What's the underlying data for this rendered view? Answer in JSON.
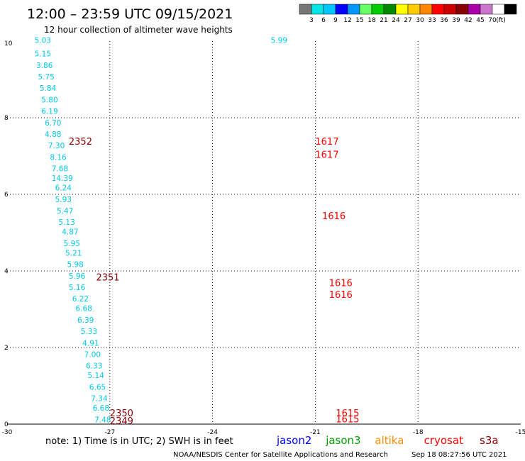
{
  "title": "12:00 – 23:59 UTC 09/15/2021",
  "subtitle": "12 hour collection of altimeter wave heights",
  "color_scale": {
    "colors": [
      "#777777",
      "#00e5e5",
      "#00c8ff",
      "#0000ff",
      "#0096ff",
      "#66ff66",
      "#00cc00",
      "#008800",
      "#ffff00",
      "#ffcc00",
      "#ff8800",
      "#ff0000",
      "#cc0000",
      "#880000",
      "#aa00aa",
      "#cc77cc",
      "#ffffff",
      "#000000"
    ],
    "labels": [
      "3",
      "6",
      "9",
      "12",
      "15",
      "18",
      "21",
      "24",
      "27",
      "30",
      "33",
      "36",
      "39",
      "42",
      "45",
      "70"
    ],
    "unit": "(ft)"
  },
  "note": "note: 1) Time is in UTC; 2) SWH is in feet",
  "legend": [
    {
      "label": "jason2",
      "color": "#0000ff"
    },
    {
      "label": "jason3",
      "color": "#00a000"
    },
    {
      "label": "altika",
      "color": "#ff8c00"
    },
    {
      "label": "cryosat",
      "color": "#ff0000"
    },
    {
      "label": "s3a",
      "color": "#880000"
    }
  ],
  "footer": "NOAA/NESDIS Center for Satellite Applications and Research",
  "timestamp": "Sep 18 08:27:56 UTC 2021",
  "chart_data": {
    "type": "scatter",
    "xlim": [
      -30,
      -15
    ],
    "ylim": [
      0,
      10
    ],
    "x_ticks": [
      "-30",
      "-27",
      "-24",
      "-21",
      "-18",
      "-15"
    ],
    "y_ticks": [
      "0",
      "2",
      "4",
      "6",
      "8",
      "10"
    ],
    "grid": true,
    "series": [
      {
        "name": "track-left",
        "color": "#00c8e6",
        "points": [
          [
            -29.2,
            9.95,
            "5.03"
          ],
          [
            -29.2,
            9.6,
            "5.15"
          ],
          [
            -29.15,
            9.3,
            "3.86"
          ],
          [
            -29.1,
            9.0,
            "5.75"
          ],
          [
            -29.05,
            8.7,
            "5.84"
          ],
          [
            -29.0,
            8.4,
            "5.80"
          ],
          [
            -29.0,
            8.1,
            "6.19"
          ],
          [
            -28.9,
            7.8,
            "6.70"
          ],
          [
            -28.9,
            7.5,
            "4.88"
          ],
          [
            -28.8,
            7.2,
            "7.30"
          ],
          [
            -28.75,
            6.9,
            "8.16"
          ],
          [
            -28.7,
            6.6,
            "7.68"
          ],
          [
            -28.7,
            6.35,
            "14.39"
          ],
          [
            -28.6,
            6.1,
            "6.24"
          ],
          [
            -28.6,
            5.8,
            "5.93"
          ],
          [
            -28.55,
            5.5,
            "5.47"
          ],
          [
            -28.5,
            5.2,
            "5.13"
          ],
          [
            -28.4,
            4.95,
            "4.87"
          ],
          [
            -28.35,
            4.65,
            "5.95"
          ],
          [
            -28.3,
            4.4,
            "5.21"
          ],
          [
            -28.25,
            4.1,
            "5.98"
          ],
          [
            -28.2,
            3.8,
            "5.96"
          ],
          [
            -28.2,
            3.5,
            "5.16"
          ],
          [
            -28.1,
            3.2,
            "6.22"
          ],
          [
            -28.0,
            2.95,
            "6.68"
          ],
          [
            -27.95,
            2.65,
            "6.39"
          ],
          [
            -27.85,
            2.35,
            "5.33"
          ],
          [
            -27.8,
            2.05,
            "4.91"
          ],
          [
            -27.75,
            1.75,
            "7.00"
          ],
          [
            -27.7,
            1.45,
            "6.33"
          ],
          [
            -27.65,
            1.2,
            "5.14"
          ],
          [
            -27.6,
            0.9,
            "6.65"
          ],
          [
            -27.55,
            0.6,
            "7.34"
          ],
          [
            -27.5,
            0.35,
            "6.68"
          ],
          [
            -27.45,
            0.05,
            "7.48"
          ]
        ]
      },
      {
        "name": "track-right",
        "color": "#00c8e6",
        "points": [
          [
            -22.3,
            9.95,
            "5.99"
          ]
        ]
      },
      {
        "name": "time-labels",
        "color": "#880000",
        "points": [
          [
            -28.2,
            7.3,
            "2352"
          ],
          [
            -27.4,
            3.75,
            "2351"
          ],
          [
            -27.0,
            0.2,
            "2350"
          ],
          [
            -27.0,
            0.0,
            "2349"
          ]
        ]
      },
      {
        "name": "time-labels-red",
        "color": "#ff0000",
        "points": [
          [
            -21.0,
            7.3,
            "1617"
          ],
          [
            -21.0,
            6.95,
            "1617"
          ],
          [
            -20.8,
            5.35,
            "1616"
          ],
          [
            -20.6,
            3.6,
            "1616"
          ],
          [
            -20.6,
            3.3,
            "1616"
          ],
          [
            -20.4,
            0.2,
            "1615"
          ],
          [
            -20.4,
            0.05,
            "1615"
          ]
        ]
      }
    ]
  }
}
